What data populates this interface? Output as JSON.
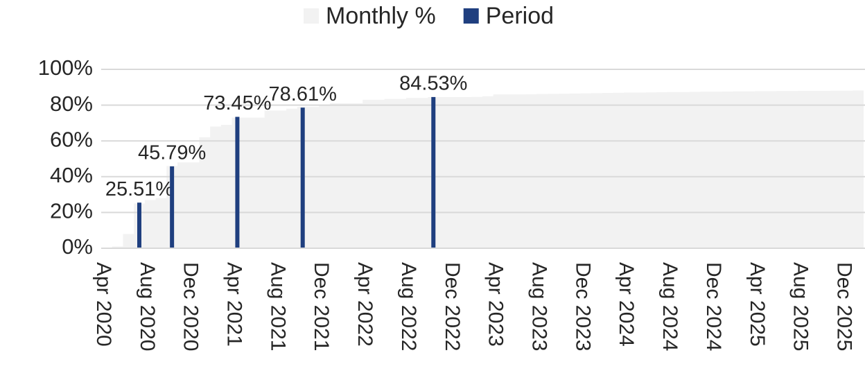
{
  "chart_data": {
    "type": "area_bar",
    "categories": [
      "Apr 2020",
      null,
      null,
      null,
      "Aug 2020",
      null,
      null,
      null,
      "Dec 2020",
      null,
      null,
      null,
      "Apr 2021",
      null,
      null,
      null,
      "Aug 2021",
      null,
      null,
      null,
      "Dec 2021",
      null,
      null,
      null,
      "Apr 2022",
      null,
      null,
      null,
      "Aug 2022",
      null,
      null,
      null,
      "Dec 2022",
      null,
      null,
      null,
      "Apr 2023",
      null,
      null,
      null,
      "Aug 2023",
      null,
      null,
      null,
      "Dec 2023",
      null,
      null,
      null,
      "Apr 2024",
      null,
      null,
      null,
      "Aug 2024",
      null,
      null,
      null,
      "Dec 2024",
      null,
      null,
      null,
      "Apr 2025",
      null,
      null,
      null,
      "Aug 2025",
      null,
      null,
      null,
      "Dec 2025",
      null
    ],
    "series": [
      {
        "name": "Monthly %",
        "color": "#f2f2f2",
        "kind": "area",
        "values": [
          0,
          1,
          8,
          25,
          27,
          28,
          46,
          48,
          48,
          62,
          68,
          69,
          73,
          73,
          73,
          77,
          77,
          78,
          79,
          79,
          80,
          81,
          81,
          81,
          83,
          83,
          83.5,
          83.5,
          84,
          84,
          84.5,
          84.5,
          84.5,
          84.5,
          84.6,
          85,
          86,
          86,
          86,
          86.1,
          86.2,
          86.3,
          86.4,
          86.5,
          86.6,
          86.7,
          86.8,
          86.9,
          87,
          87,
          87.1,
          87.2,
          87.3,
          87.3,
          87.4,
          87.5,
          87.5,
          87.6,
          87.7,
          87.7,
          87.8,
          87.8,
          87.9,
          87.9,
          88,
          88,
          88,
          88.1,
          88.1,
          88.2
        ]
      },
      {
        "name": "Period",
        "color": "#1f3f7f",
        "kind": "bar",
        "values": [
          null,
          null,
          null,
          25.51,
          null,
          null,
          45.79,
          null,
          null,
          null,
          null,
          null,
          73.45,
          null,
          null,
          null,
          null,
          null,
          78.61,
          null,
          null,
          null,
          null,
          null,
          null,
          null,
          null,
          null,
          null,
          null,
          84.53,
          null,
          null,
          null,
          null,
          null,
          null,
          null,
          null,
          null,
          null,
          null,
          null,
          null,
          null,
          null,
          null,
          null,
          null,
          null,
          null,
          null,
          null,
          null,
          null,
          null,
          null,
          null,
          null,
          null,
          null,
          null,
          null,
          null,
          null,
          null,
          null,
          null,
          null,
          null
        ],
        "value_labels": [
          null,
          null,
          null,
          "25.51%",
          null,
          null,
          "45.79%",
          null,
          null,
          null,
          null,
          null,
          "73.45%",
          null,
          null,
          null,
          null,
          null,
          "78.61%",
          null,
          null,
          null,
          null,
          null,
          null,
          null,
          null,
          null,
          null,
          null,
          "84.53%",
          null,
          null,
          null,
          null,
          null,
          null,
          null,
          null,
          null,
          null,
          null,
          null,
          null,
          null,
          null,
          null,
          null,
          null,
          null,
          null,
          null,
          null,
          null,
          null,
          null,
          null,
          null,
          null,
          null,
          null,
          null,
          null,
          null,
          null,
          null,
          null,
          null,
          null,
          null
        ]
      }
    ],
    "ylim": [
      0,
      100
    ],
    "yticks": [
      {
        "value": 0,
        "label": "0%"
      },
      {
        "value": 20,
        "label": "20%"
      },
      {
        "value": 40,
        "label": "40%"
      },
      {
        "value": 60,
        "label": "60%"
      },
      {
        "value": 80,
        "label": "80%"
      },
      {
        "value": 100,
        "label": "100%"
      }
    ],
    "grid": true,
    "legend": "top"
  }
}
